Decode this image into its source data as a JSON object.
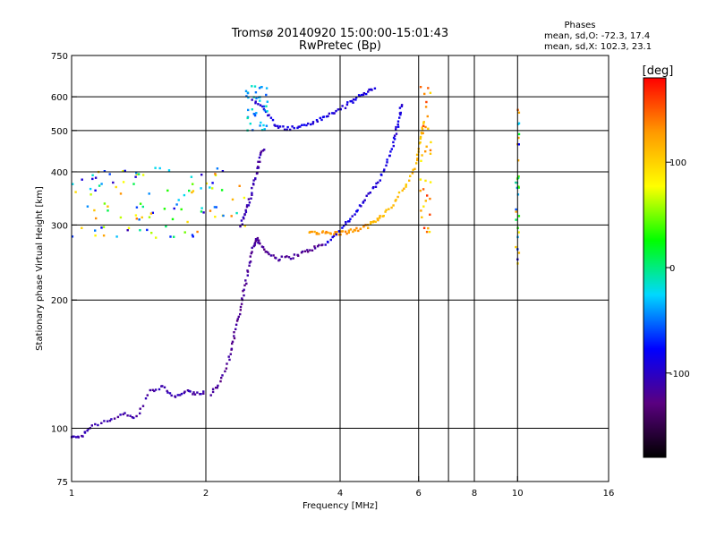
{
  "chart_data": {
    "type": "scatter",
    "title": "Tromsø 20140920 15:00:00-15:01:43",
    "subtitle": "RwPretec (Bp)",
    "xlabel": "Frequency [MHz]",
    "ylabel": "Stationary phase Virtual Height [km]",
    "x_scale": "log",
    "y_scale": "log",
    "xlim": [
      1,
      16
    ],
    "ylim": [
      75,
      750
    ],
    "x_ticks": [
      1,
      2,
      4,
      6,
      8,
      10,
      16
    ],
    "x_tick_labels": [
      "1",
      "2",
      "4",
      "6",
      "8",
      "10",
      "16"
    ],
    "y_ticks": [
      75,
      100,
      200,
      300,
      400,
      500,
      600,
      750
    ],
    "y_tick_labels": [
      "75",
      "100",
      "200",
      "300",
      "400",
      "500",
      "600",
      "750"
    ],
    "x_grid": [
      2,
      4,
      6,
      7,
      8,
      10
    ],
    "y_grid": [
      100,
      200,
      300,
      400,
      500,
      600
    ],
    "grid": true,
    "legend": {
      "title": "Phases",
      "lines": [
        "mean, sd,O: -72.3, 17.4",
        "mean, sd,X: 102.3, 23.1"
      ],
      "placement": "top-right"
    },
    "colorbar": {
      "label": "[deg]",
      "min": -180,
      "max": 180,
      "ticks": [
        100,
        0,
        -100
      ],
      "tick_labels": [
        "100",
        "0",
        "-100"
      ],
      "placement": "right",
      "colors": [
        "#000000",
        "#5a0080",
        "#0000ff",
        "#00d8ff",
        "#00ff00",
        "#ffff00",
        "#ff9900",
        "#ff0000"
      ]
    },
    "traces": [
      {
        "phase": -120,
        "points": [
          [
            2.05,
            120
          ],
          [
            2.15,
            128
          ],
          [
            2.25,
            145
          ],
          [
            2.3,
            160
          ],
          [
            2.35,
            178
          ],
          [
            2.4,
            195
          ],
          [
            2.45,
            215
          ],
          [
            2.5,
            240
          ],
          [
            2.55,
            265
          ],
          [
            2.6,
            280
          ],
          [
            2.65,
            270
          ],
          [
            2.75,
            258
          ],
          [
            2.9,
            250
          ],
          [
            3.1,
            252
          ],
          [
            3.3,
            258
          ],
          [
            3.5,
            265
          ],
          [
            3.7,
            270
          ]
        ]
      },
      {
        "phase": -90,
        "points": [
          [
            3.7,
            270
          ],
          [
            3.9,
            285
          ],
          [
            4.1,
            300
          ],
          [
            4.3,
            318
          ],
          [
            4.5,
            338
          ],
          [
            4.7,
            360
          ],
          [
            4.9,
            385
          ],
          [
            5.1,
            420
          ],
          [
            5.25,
            460
          ],
          [
            5.35,
            500
          ],
          [
            5.45,
            540
          ],
          [
            5.5,
            580
          ]
        ]
      },
      {
        "phase": 130,
        "points": [
          [
            3.4,
            290
          ],
          [
            3.6,
            288
          ],
          [
            3.8,
            287
          ],
          [
            4.0,
            287
          ],
          [
            4.2,
            290
          ],
          [
            4.4,
            293
          ],
          [
            4.6,
            298
          ]
        ]
      },
      {
        "phase": 110,
        "points": [
          [
            4.6,
            298
          ],
          [
            4.8,
            306
          ],
          [
            5.0,
            318
          ],
          [
            5.3,
            340
          ],
          [
            5.6,
            370
          ],
          [
            5.9,
            410
          ],
          [
            6.0,
            450
          ],
          [
            6.1,
            490
          ],
          [
            6.15,
            530
          ]
        ]
      },
      {
        "phase": -90,
        "points": [
          [
            2.55,
            590
          ],
          [
            2.7,
            560
          ],
          [
            2.85,
            520
          ],
          [
            3.0,
            505
          ],
          [
            3.2,
            508
          ],
          [
            3.4,
            518
          ],
          [
            3.6,
            530
          ],
          [
            3.8,
            545
          ],
          [
            4.0,
            560
          ],
          [
            4.2,
            580
          ],
          [
            4.4,
            600
          ],
          [
            4.6,
            615
          ],
          [
            4.8,
            635
          ]
        ]
      },
      {
        "phase": -110,
        "points": [
          [
            1.0,
            95
          ],
          [
            1.05,
            96
          ],
          [
            1.1,
            100
          ],
          [
            1.2,
            104
          ],
          [
            1.3,
            108
          ],
          [
            1.4,
            106
          ],
          [
            1.5,
            122
          ],
          [
            1.6,
            125
          ],
          [
            1.7,
            118
          ],
          [
            1.8,
            122
          ],
          [
            1.9,
            120
          ],
          [
            2.0,
            122
          ]
        ]
      },
      {
        "phase": -110,
        "points": [
          [
            2.4,
            300
          ],
          [
            2.45,
            320
          ],
          [
            2.5,
            340
          ],
          [
            2.55,
            370
          ],
          [
            2.6,
            400
          ],
          [
            2.65,
            430
          ],
          [
            2.7,
            460
          ]
        ]
      }
    ],
    "clusters": [
      {
        "x": [
          1.0,
          2.45
        ],
        "y": [
          280,
          410
        ],
        "phase_range": [
          -110,
          140
        ]
      },
      {
        "x": [
          2.45,
          2.75
        ],
        "y": [
          500,
          640
        ],
        "phase_range": [
          -60,
          -5
        ]
      },
      {
        "x": [
          6.05,
          6.4
        ],
        "y": [
          285,
          640
        ],
        "phase_range": [
          80,
          170
        ]
      },
      {
        "x": [
          9.9,
          10.1
        ],
        "y": [
          240,
          590
        ],
        "phase_range": [
          -100,
          170
        ]
      }
    ]
  }
}
